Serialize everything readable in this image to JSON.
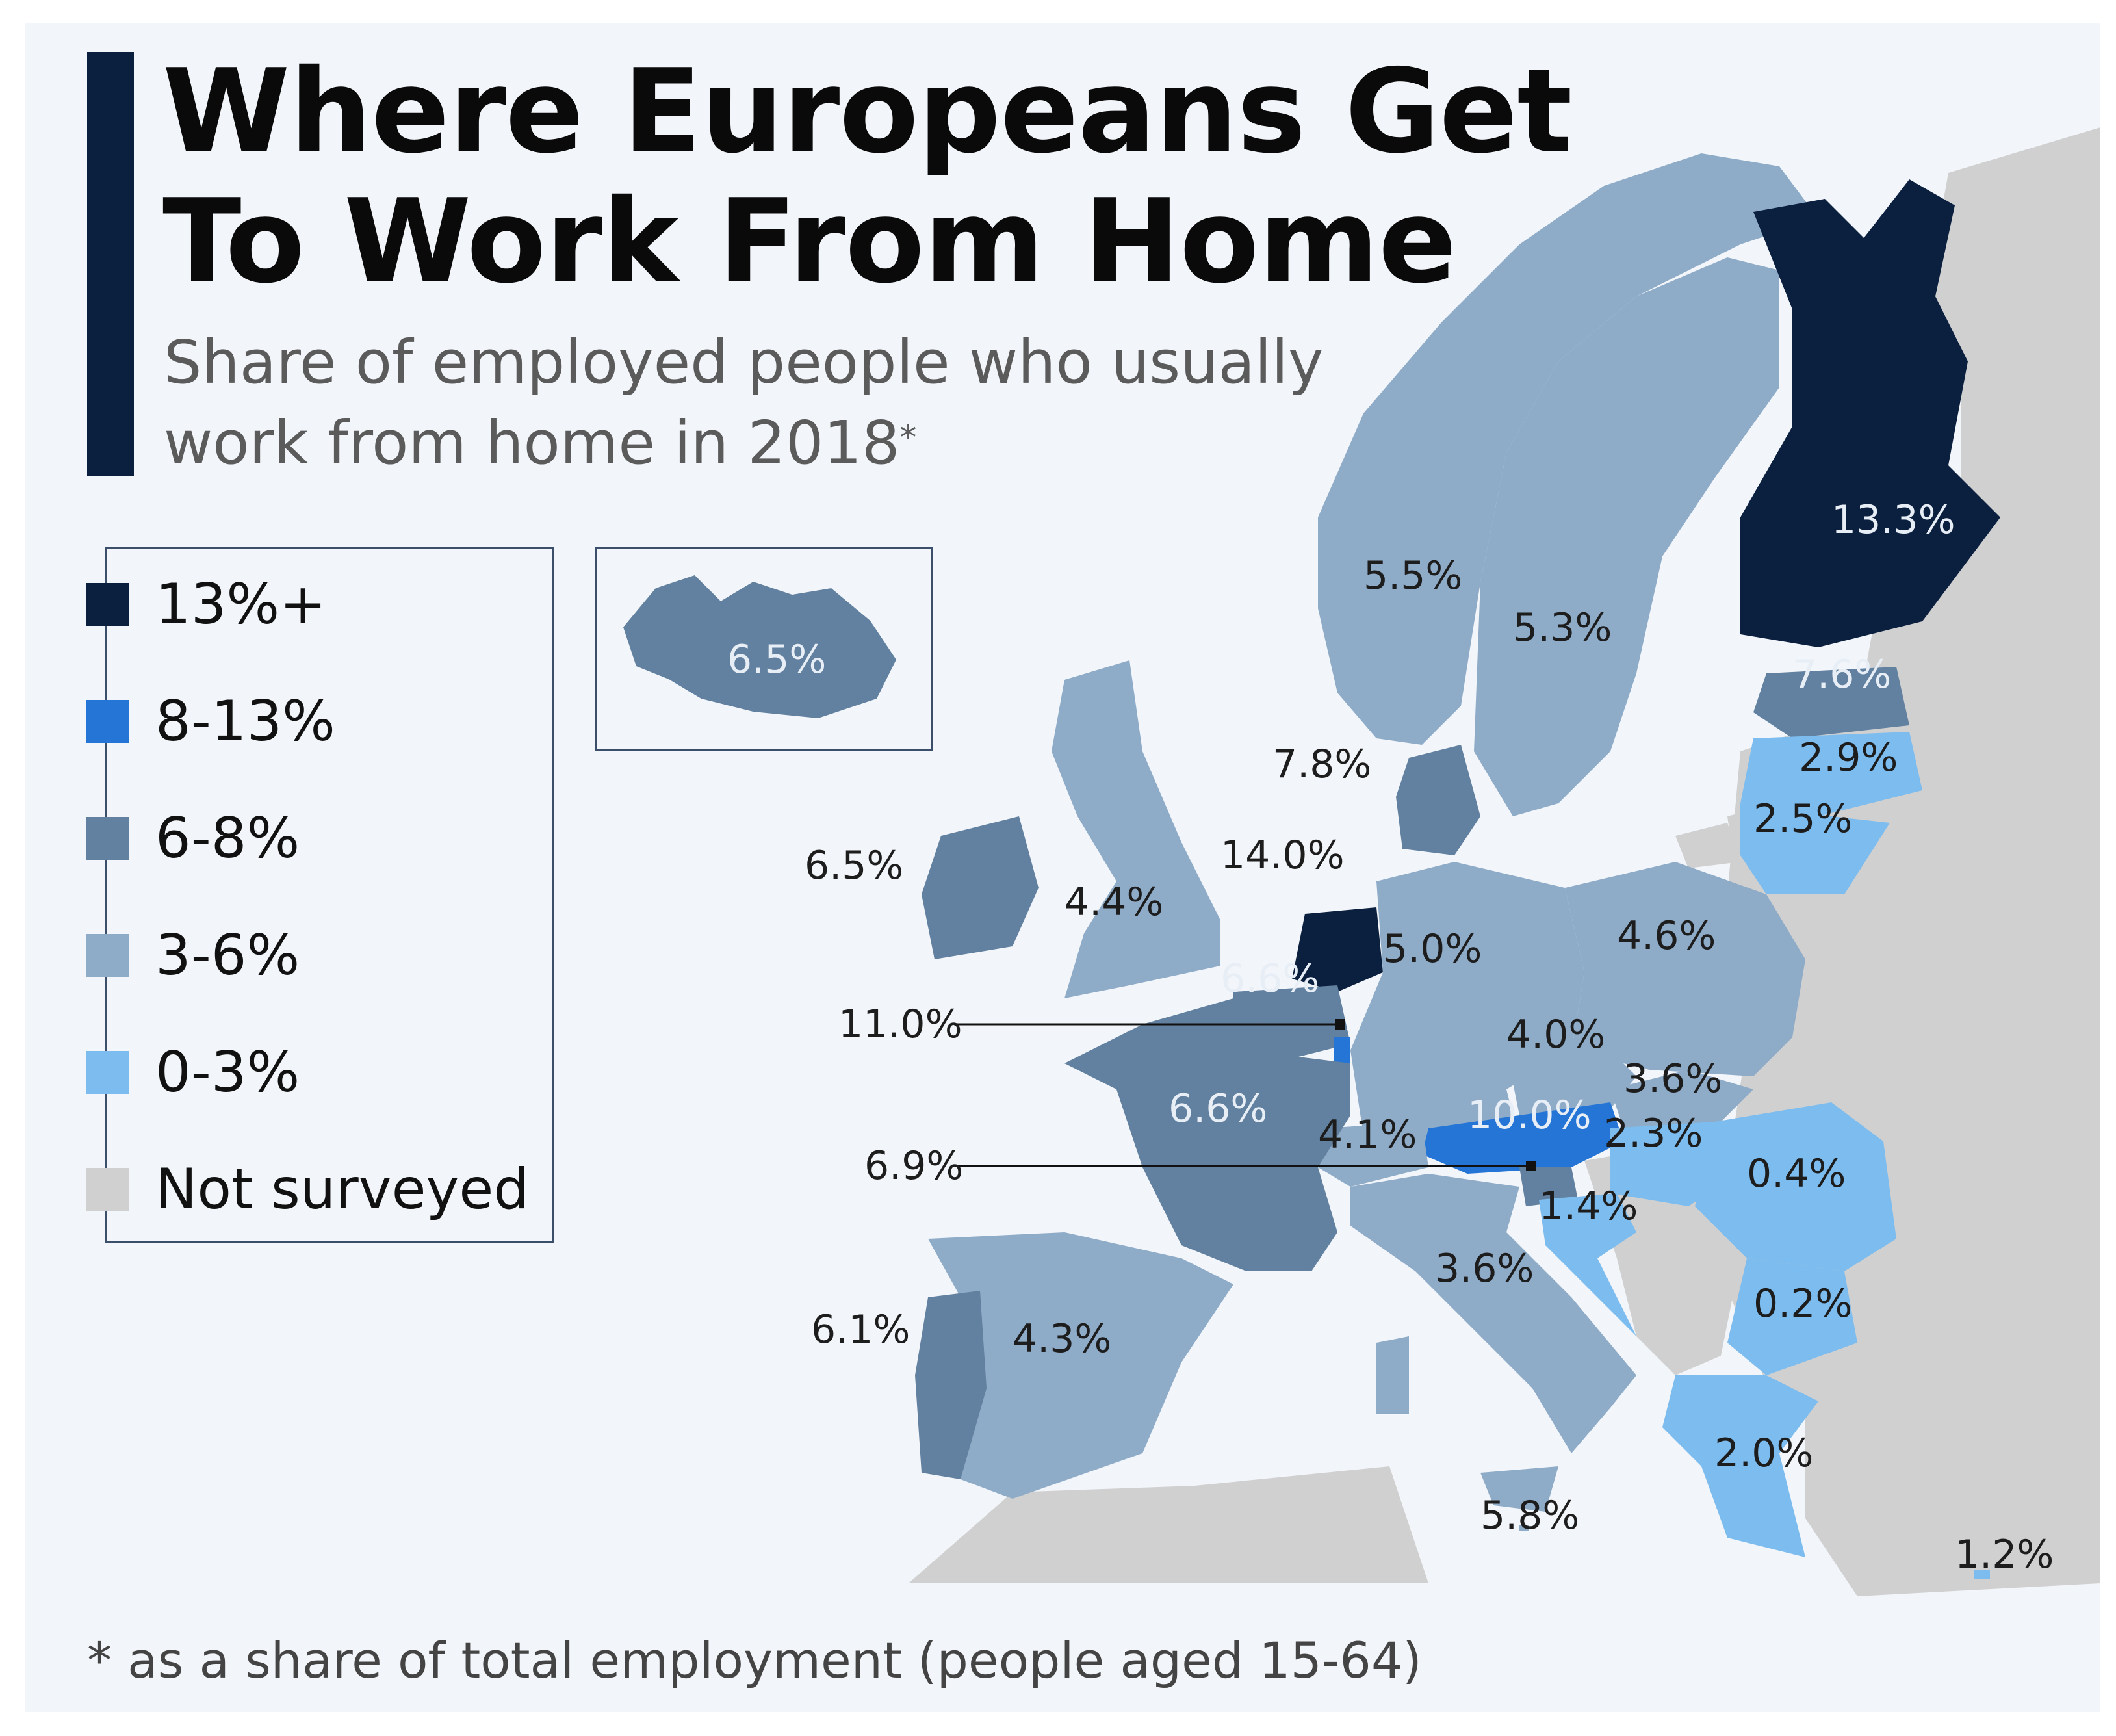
{
  "title_line1": "Where Europeans Get",
  "title_line2": "To Work From Home",
  "subtitle_line1": "Share of employed people who usually",
  "subtitle_line2": "work from home in 2018",
  "subtitle_mark": "*",
  "footnote": "* as a share of total employment (people aged 15-64)",
  "colors": {
    "c13plus": "#0b1f3f",
    "c8to13": "#2575d6",
    "c6to8": "#62809f",
    "c3to6": "#8eabc8",
    "c0to3": "#7dbcee",
    "not_surveyed": "#d0d0d0",
    "background": "#f2f5f9"
  },
  "legend": [
    {
      "label": "13%+",
      "color": "#0b1f3f"
    },
    {
      "label": "8-13%",
      "color": "#2575d6"
    },
    {
      "label": "6-8%",
      "color": "#62809f"
    },
    {
      "label": "3-6%",
      "color": "#8eabc8"
    },
    {
      "label": "0-3%",
      "color": "#7dbcee"
    },
    {
      "label": "Not surveyed",
      "color": "#d0d0d0"
    }
  ],
  "values": {
    "iceland": "6.5%",
    "finland": "13.3%",
    "norway": "5.5%",
    "sweden": "5.3%",
    "estonia": "7.6%",
    "latvia": "2.9%",
    "lithuania": "2.5%",
    "denmark": "7.8%",
    "netherlands": "14.0%",
    "ireland": "6.5%",
    "uk": "4.4%",
    "belgium": "6.6%",
    "luxembourg": "11.0%",
    "germany": "5.0%",
    "poland": "4.6%",
    "czechia": "4.0%",
    "slovakia": "3.6%",
    "austria": "10.0%",
    "switzerland": "4.1%",
    "hungary": "2.3%",
    "slovenia": "6.9%",
    "croatia": "1.4%",
    "romania": "0.4%",
    "bulgaria": "0.2%",
    "france": "6.6%",
    "italy": "3.6%",
    "portugal": "6.1%",
    "spain": "4.3%",
    "greece": "2.0%",
    "malta": "5.8%",
    "cyprus": "1.2%"
  }
}
